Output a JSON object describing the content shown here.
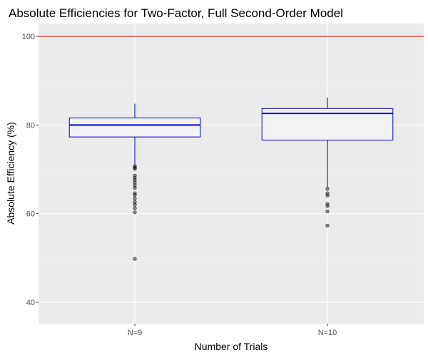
{
  "chart_data": {
    "type": "box",
    "title": "Absolute Efficiencies for Two-Factor, Full Second-Order Model",
    "xlabel": "Number of Trials",
    "ylabel": "Absolute Efficiency (%)",
    "ylim": [
      35,
      105
    ],
    "yticks": [
      40,
      60,
      80,
      100
    ],
    "grid": true,
    "panel_background": "#ebebeb",
    "box_color": "#0000cd",
    "box_fill": "#f2f2f2",
    "reference_line": {
      "y": 100,
      "color": "#cc0000"
    },
    "categories": [
      "N=9",
      "N=10"
    ],
    "boxes": [
      {
        "category": "N=9",
        "lower_whisker": 70.9,
        "q1": 77.3,
        "median": 80.0,
        "q3": 81.6,
        "upper_whisker": 84.8,
        "outliers": [
          70.7,
          70.4,
          70.1,
          68.6,
          68.1,
          67.6,
          67.0,
          66.4,
          65.8,
          64.6,
          64.2,
          63.4,
          62.6,
          62.0,
          61.2,
          60.3,
          49.8
        ]
      },
      {
        "category": "N=10",
        "lower_whisker": 66.0,
        "q1": 76.6,
        "median": 82.6,
        "q3": 83.7,
        "upper_whisker": 86.2,
        "outliers": [
          65.6,
          64.6,
          64.1,
          62.2,
          61.7,
          60.5,
          57.3
        ]
      }
    ]
  }
}
